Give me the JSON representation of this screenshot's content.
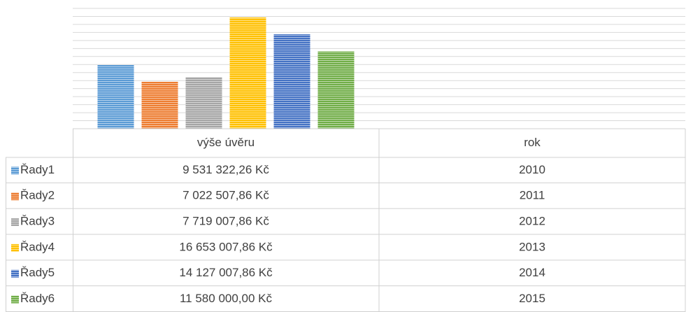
{
  "chart_data": {
    "type": "bar",
    "categories": [
      "výše úvěru",
      "rok"
    ],
    "series": [
      {
        "name": "Řady1",
        "color": "#5b9bd5",
        "values": [
          9531322.26,
          2010
        ],
        "value_labels": [
          "9 531 322,26 Kč",
          "2010"
        ]
      },
      {
        "name": "Řady2",
        "color": "#ed7d31",
        "values": [
          7022507.86,
          2011
        ],
        "value_labels": [
          "7 022 507,86 Kč",
          "2011"
        ]
      },
      {
        "name": "Řady3",
        "color": "#a5a5a5",
        "values": [
          7719007.86,
          2012
        ],
        "value_labels": [
          "7 719 007,86 Kč",
          "2012"
        ]
      },
      {
        "name": "Řady4",
        "color": "#ffc000",
        "values": [
          16653007.86,
          2013
        ],
        "value_labels": [
          "16 653 007,86 Kč",
          "2013"
        ]
      },
      {
        "name": "Řady5",
        "color": "#4472c4",
        "values": [
          14127007.86,
          2014
        ],
        "value_labels": [
          "14 127 007,86 Kč",
          "2014"
        ]
      },
      {
        "name": "Řady6",
        "color": "#70ad47",
        "values": [
          11580000.0,
          2015
        ],
        "value_labels": [
          "11 580 000,00 Kč",
          "2015"
        ]
      }
    ],
    "ylim": [
      0,
      18000000
    ],
    "yticks": [
      0,
      1200000,
      2400000,
      3600000,
      4800000,
      6000000,
      7200000,
      8400000,
      9600000,
      10800000,
      12000000,
      13200000,
      14400000,
      15600000,
      16800000,
      18000000
    ],
    "grid": true
  }
}
